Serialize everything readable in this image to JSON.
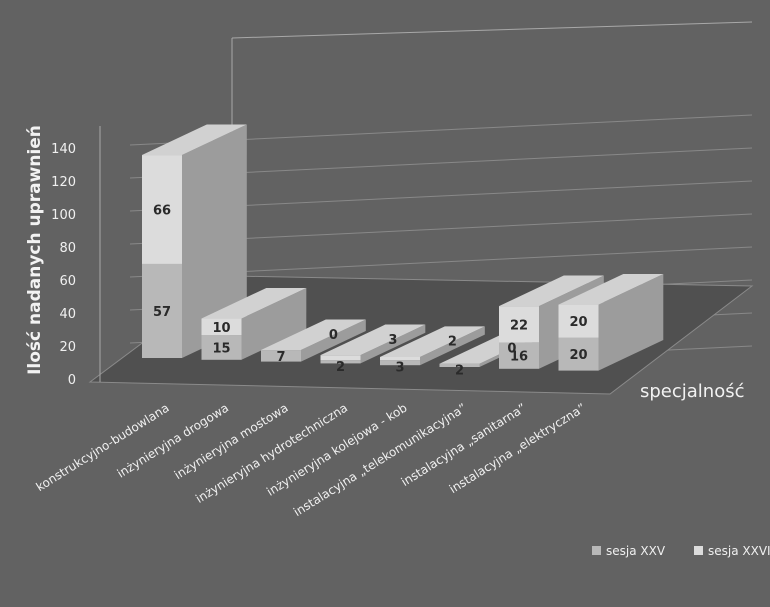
{
  "chart_data": {
    "type": "bar",
    "stacked": true,
    "style": "3d",
    "title": "",
    "ylabel": "Ilość nadanych uprawnień",
    "xlabel": "specjalność",
    "ylim": [
      0,
      140
    ],
    "yticks": [
      0,
      20,
      40,
      60,
      80,
      100,
      120,
      140
    ],
    "grid": true,
    "legend_position": "bottom-right",
    "categories": [
      "konstrukcyjno-budowlana",
      "inżynieryjna drogowa",
      "inżynieryjna mostowa",
      "inżynieryjna hydrotechniczna",
      "inżynieryjna kolejowa - kob",
      "instalacyjna „telekomunikacyjna”",
      "instalacyjna „sanitarna”",
      "instalacyjna „elektryczna”"
    ],
    "series": [
      {
        "name": "sesja XXV",
        "values": [
          57,
          15,
          7,
          2,
          3,
          2,
          16,
          20
        ]
      },
      {
        "name": "sesja XXVI",
        "values": [
          66,
          10,
          0,
          3,
          2,
          0,
          22,
          20
        ]
      }
    ],
    "colors": {
      "background": "#626262",
      "series1": "#b8b8b8",
      "series2": "#dcdcdc",
      "grid": "#a8a8a8",
      "label": "#f0f0f0",
      "value_text": "#2a2a2a"
    }
  }
}
